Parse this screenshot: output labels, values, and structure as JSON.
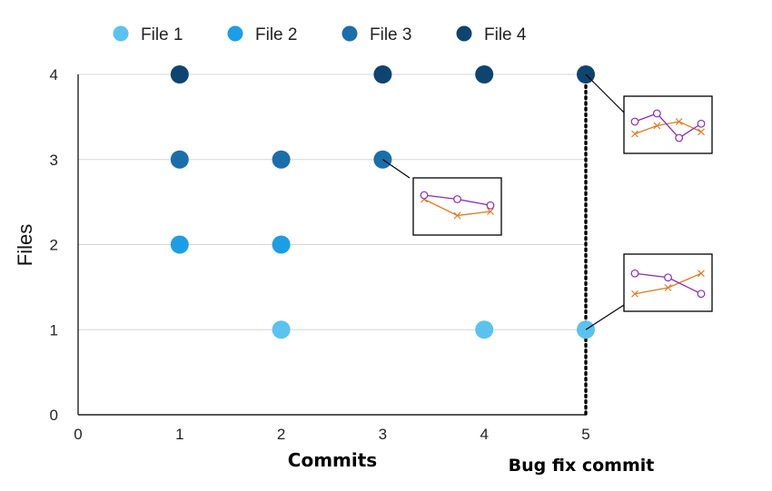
{
  "chart_data": {
    "type": "scatter",
    "xlabel": "Commits",
    "ylabel": "Files",
    "xlim": [
      0,
      5
    ],
    "ylim": [
      0,
      4
    ],
    "x_ticks": [
      "0",
      "1",
      "2",
      "3",
      "4",
      "5"
    ],
    "y_ticks": [
      "0",
      "1",
      "2",
      "3",
      "4"
    ],
    "grid": "horizontal",
    "legend_position": "top",
    "series": [
      {
        "name": "File 1",
        "color": "#5bc2f0",
        "points": [
          [
            2,
            1
          ],
          [
            4,
            1
          ],
          [
            5,
            1
          ]
        ]
      },
      {
        "name": "File 2",
        "color": "#1c9ee6",
        "points": [
          [
            1,
            2
          ],
          [
            2,
            2
          ]
        ]
      },
      {
        "name": "File 3",
        "color": "#1a6fab",
        "points": [
          [
            1,
            3
          ],
          [
            2,
            3
          ],
          [
            3,
            3
          ]
        ]
      },
      {
        "name": "File 4",
        "color": "#0e4470",
        "points": [
          [
            1,
            4
          ],
          [
            3,
            4
          ],
          [
            4,
            4
          ],
          [
            5,
            4
          ]
        ]
      }
    ],
    "annotation_label": "Bug fix commit",
    "annotation_x": 5,
    "inset_colors": {
      "circle_series": "#8a2bb8",
      "cross_series": "#e07a1f"
    },
    "insets": [
      {
        "anchor": [
          3,
          3
        ],
        "circle_series": [
          0.8,
          0.7,
          0.55
        ],
        "cross_series": [
          0.7,
          0.3,
          0.4
        ]
      },
      {
        "anchor": [
          5,
          4
        ],
        "circle_series": [
          0.6,
          0.8,
          0.2,
          0.55
        ],
        "cross_series": [
          0.3,
          0.5,
          0.6,
          0.35
        ]
      },
      {
        "anchor": [
          5,
          1
        ],
        "circle_series": [
          0.75,
          0.65,
          0.25
        ],
        "cross_series": [
          0.25,
          0.4,
          0.75
        ]
      }
    ]
  }
}
